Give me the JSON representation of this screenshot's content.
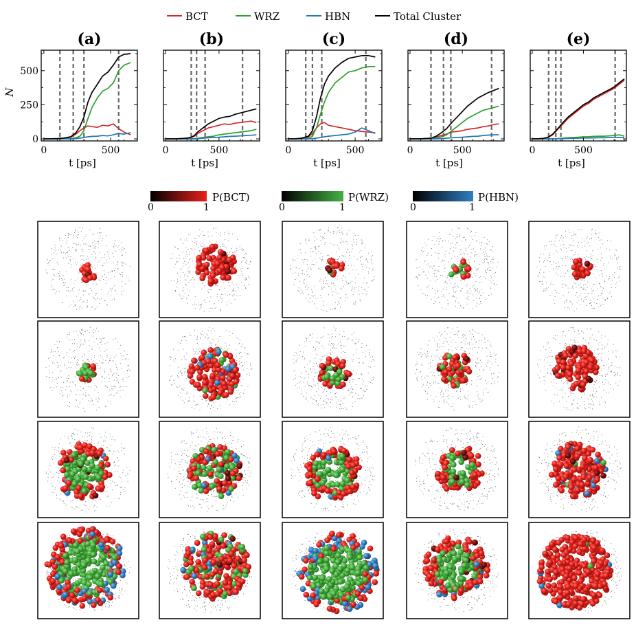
{
  "legend": [
    {
      "name": "BCT",
      "color": "#d62728"
    },
    {
      "name": "WRZ",
      "color": "#2ca02c"
    },
    {
      "name": "HBN",
      "color": "#1f77b4"
    },
    {
      "name": "Total Cluster",
      "color": "#000000"
    }
  ],
  "colorbars": [
    {
      "label": "P(BCT)",
      "min": "0",
      "max": "1",
      "color": "#e8201c"
    },
    {
      "label": "P(WRZ)",
      "min": "0",
      "max": "1",
      "color": "#45b045"
    },
    {
      "label": "P(HBN)",
      "min": "0",
      "max": "1",
      "color": "#2f7fc2"
    }
  ],
  "chart_data": [
    {
      "type": "line",
      "title": "(a)",
      "xlabel": "t [ps]",
      "ylabel": "N",
      "xlim": [
        -20,
        700
      ],
      "ylim": [
        -15,
        650
      ],
      "xticks": [
        0,
        500
      ],
      "yticks": [
        0,
        250,
        500
      ],
      "vlines": [
        120,
        220,
        300,
        560
      ],
      "x": [
        0,
        50,
        100,
        150,
        200,
        240,
        270,
        300,
        330,
        360,
        400,
        440,
        480,
        520,
        560,
        600,
        650
      ],
      "series": [
        {
          "name": "BCT",
          "values": [
            0,
            0,
            2,
            5,
            12,
            35,
            60,
            80,
            95,
            90,
            85,
            100,
            95,
            110,
            75,
            50,
            30
          ]
        },
        {
          "name": "WRZ",
          "values": [
            0,
            0,
            0,
            0,
            2,
            8,
            20,
            60,
            150,
            230,
            300,
            350,
            370,
            410,
            500,
            540,
            560
          ]
        },
        {
          "name": "HBN",
          "values": [
            0,
            0,
            0,
            0,
            0,
            2,
            5,
            10,
            15,
            18,
            20,
            25,
            22,
            30,
            40,
            35,
            45
          ]
        },
        {
          "name": "Total Cluster",
          "values": [
            0,
            0,
            2,
            6,
            15,
            45,
            90,
            160,
            270,
            340,
            400,
            460,
            490,
            540,
            600,
            620,
            625
          ]
        }
      ]
    },
    {
      "type": "line",
      "title": "(b)",
      "xlabel": "t [ps]",
      "ylabel": "",
      "xlim": [
        -20,
        880
      ],
      "ylim": [
        -15,
        650
      ],
      "xticks": [
        0,
        500
      ],
      "yticks": [
        0,
        250,
        500
      ],
      "vlines": [
        240,
        290,
        370,
        720
      ],
      "x": [
        0,
        100,
        200,
        240,
        270,
        300,
        350,
        400,
        450,
        500,
        550,
        600,
        650,
        700,
        750,
        800,
        850
      ],
      "series": [
        {
          "name": "BCT",
          "values": [
            0,
            0,
            5,
            10,
            20,
            40,
            60,
            80,
            90,
            100,
            110,
            105,
            115,
            120,
            125,
            130,
            120
          ]
        },
        {
          "name": "WRZ",
          "values": [
            0,
            0,
            0,
            0,
            2,
            5,
            10,
            15,
            20,
            30,
            35,
            40,
            45,
            50,
            55,
            60,
            70
          ]
        },
        {
          "name": "HBN",
          "values": [
            0,
            0,
            0,
            0,
            0,
            2,
            5,
            8,
            10,
            12,
            15,
            18,
            20,
            22,
            25,
            27,
            30
          ]
        },
        {
          "name": "Total Cluster",
          "values": [
            0,
            0,
            5,
            12,
            25,
            50,
            80,
            110,
            130,
            150,
            160,
            165,
            180,
            190,
            200,
            210,
            220
          ]
        }
      ]
    },
    {
      "type": "line",
      "title": "(c)",
      "xlabel": "t [ps]",
      "ylabel": "",
      "xlim": [
        -20,
        700
      ],
      "ylim": [
        -15,
        650
      ],
      "xticks": [
        0,
        500
      ],
      "yticks": [
        0,
        250,
        500
      ],
      "vlines": [
        130,
        180,
        250,
        580
      ],
      "x": [
        0,
        50,
        100,
        150,
        180,
        210,
        240,
        270,
        300,
        350,
        400,
        450,
        500,
        550,
        600,
        650
      ],
      "series": [
        {
          "name": "BCT",
          "values": [
            0,
            0,
            5,
            15,
            40,
            80,
            110,
            120,
            100,
            90,
            80,
            70,
            60,
            55,
            50,
            45
          ]
        },
        {
          "name": "WRZ",
          "values": [
            0,
            0,
            0,
            5,
            20,
            80,
            180,
            270,
            340,
            410,
            450,
            490,
            500,
            520,
            530,
            530
          ]
        },
        {
          "name": "HBN",
          "values": [
            0,
            0,
            0,
            0,
            2,
            5,
            10,
            15,
            20,
            25,
            30,
            35,
            50,
            80,
            60,
            40
          ]
        },
        {
          "name": "Total Cluster",
          "values": [
            0,
            0,
            5,
            20,
            60,
            160,
            300,
            400,
            460,
            520,
            560,
            590,
            600,
            610,
            610,
            600
          ]
        }
      ]
    },
    {
      "type": "line",
      "title": "(d)",
      "xlabel": "t [ps]",
      "ylabel": "",
      "xlim": [
        -20,
        900
      ],
      "ylim": [
        -15,
        650
      ],
      "xticks": [
        0,
        500
      ],
      "yticks": [
        0,
        250,
        500
      ],
      "vlines": [
        200,
        320,
        390,
        780
      ],
      "x": [
        0,
        100,
        200,
        250,
        300,
        350,
        400,
        450,
        500,
        550,
        600,
        650,
        700,
        750,
        800,
        850
      ],
      "series": [
        {
          "name": "BCT",
          "values": [
            0,
            0,
            5,
            15,
            25,
            35,
            50,
            55,
            60,
            70,
            75,
            80,
            90,
            95,
            105,
            110
          ]
        },
        {
          "name": "WRZ",
          "values": [
            0,
            0,
            0,
            5,
            15,
            30,
            60,
            90,
            120,
            150,
            170,
            190,
            210,
            220,
            230,
            240
          ]
        },
        {
          "name": "HBN",
          "values": [
            0,
            0,
            0,
            0,
            2,
            5,
            8,
            10,
            12,
            15,
            18,
            20,
            25,
            28,
            30,
            30
          ]
        },
        {
          "name": "Total Cluster",
          "values": [
            0,
            0,
            5,
            20,
            45,
            75,
            120,
            160,
            200,
            240,
            270,
            300,
            320,
            340,
            355,
            370
          ]
        }
      ]
    },
    {
      "type": "line",
      "title": "(e)",
      "xlabel": "t [ps]",
      "ylabel": "",
      "xlim": [
        -20,
        920
      ],
      "ylim": [
        -15,
        650
      ],
      "xticks": [
        0,
        500
      ],
      "yticks": [
        0,
        250,
        500
      ],
      "vlines": [
        160,
        230,
        280,
        810
      ],
      "x": [
        0,
        50,
        100,
        150,
        200,
        250,
        300,
        350,
        400,
        450,
        500,
        550,
        600,
        650,
        700,
        750,
        800,
        850,
        900
      ],
      "series": [
        {
          "name": "BCT",
          "values": [
            0,
            0,
            2,
            8,
            30,
            70,
            110,
            150,
            180,
            210,
            240,
            260,
            290,
            310,
            330,
            350,
            370,
            400,
            430
          ]
        },
        {
          "name": "WRZ",
          "values": [
            0,
            0,
            0,
            0,
            0,
            2,
            5,
            8,
            10,
            12,
            15,
            15,
            18,
            20,
            20,
            22,
            25,
            30,
            20
          ]
        },
        {
          "name": "HBN",
          "values": [
            0,
            0,
            0,
            0,
            0,
            1,
            2,
            3,
            4,
            5,
            6,
            6,
            7,
            8,
            8,
            9,
            10,
            10,
            10
          ]
        },
        {
          "name": "Total Cluster",
          "values": [
            0,
            0,
            3,
            10,
            35,
            75,
            120,
            160,
            190,
            220,
            250,
            270,
            300,
            320,
            340,
            360,
            380,
            410,
            440
          ]
        }
      ]
    }
  ]
}
